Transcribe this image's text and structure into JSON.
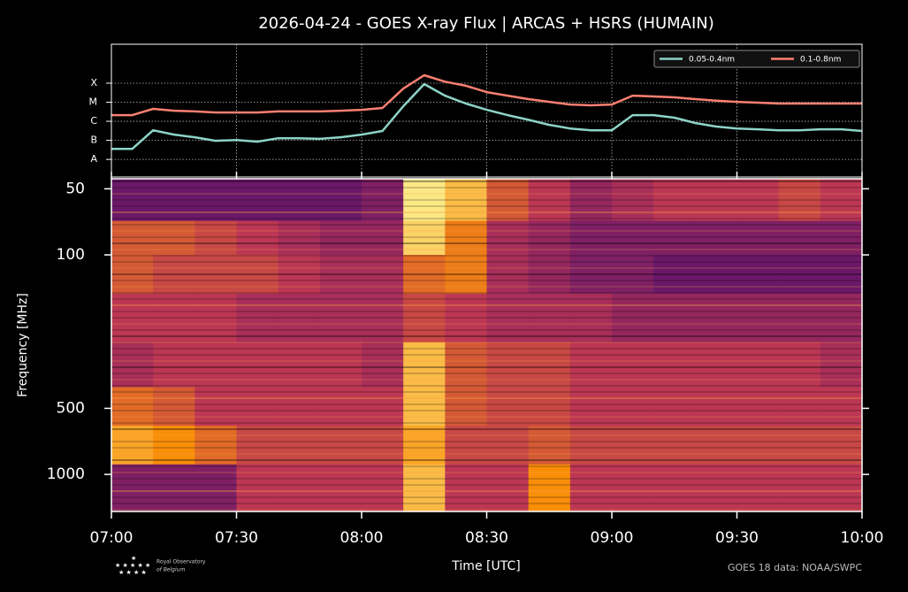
{
  "chart_data": [
    {
      "type": "line",
      "title": "2026-04-24 - GOES X-ray Flux | ARCAS + HSRS (HUMAIN)",
      "log_scale": true,
      "legend": "upper right",
      "grid": true,
      "xlim": [
        "07:00",
        "10:00"
      ],
      "ylim": [
        1.2e-09,
        0.011
      ],
      "yticks": [
        {
          "value": 1e-08,
          "label": "A"
        },
        {
          "value": 1e-07,
          "label": "B"
        },
        {
          "value": 1e-06,
          "label": "C"
        },
        {
          "value": 1e-05,
          "label": "M"
        },
        {
          "value": 0.0001,
          "label": "X"
        }
      ],
      "x": [
        "07:00",
        "07:05",
        "07:10",
        "07:15",
        "07:20",
        "07:25",
        "07:30",
        "07:35",
        "07:40",
        "07:45",
        "07:50",
        "07:55",
        "08:00",
        "08:05",
        "08:10",
        "08:15",
        "08:20",
        "08:25",
        "08:30",
        "08:35",
        "08:40",
        "08:45",
        "08:50",
        "08:55",
        "09:00",
        "09:05",
        "09:10",
        "09:15",
        "09:20",
        "09:25",
        "09:30",
        "09:35",
        "09:40",
        "09:45",
        "09:50",
        "09:55",
        "10:00"
      ],
      "series": [
        {
          "name": "0.05-0.4nm",
          "color": "#8dd3c7",
          "values": [
            3.6e-08,
            3.6e-08,
            3.4e-07,
            2e-07,
            1.45e-07,
            9.5e-08,
            1.05e-07,
            8.5e-08,
            1.3e-07,
            1.3e-07,
            1.2e-07,
            1.45e-07,
            2e-07,
            3.1e-07,
            6.2e-06,
            9e-05,
            2.2e-05,
            8.5e-06,
            4e-06,
            2.1e-06,
            1.2e-06,
            6.5e-07,
            4.2e-07,
            3.4e-07,
            3.4e-07,
            2.1e-06,
            2.1e-06,
            1.55e-06,
            8.1e-07,
            5.3e-07,
            4.2e-07,
            3.8e-07,
            3.4e-07,
            3.4e-07,
            3.8e-07,
            3.8e-07,
            3.1e-07
          ]
        },
        {
          "name": "0.1-0.8nm",
          "color": "#fa8072",
          "values": [
            2.1e-06,
            2.1e-06,
            4.5e-06,
            3.6e-06,
            3.3e-06,
            2.9e-06,
            2.9e-06,
            2.9e-06,
            3.3e-06,
            3.3e-06,
            3.3e-06,
            3.6e-06,
            4e-06,
            5e-06,
            5.2e-05,
            0.00026,
            0.00012,
            7.3e-05,
            3.4e-05,
            2.2e-05,
            1.45e-05,
            1.05e-05,
            7.6e-06,
            6.9e-06,
            7.6e-06,
            2.2e-05,
            2e-05,
            1.8e-05,
            1.45e-05,
            1.2e-05,
            1.05e-05,
            9.5e-06,
            8.5e-06,
            8.5e-06,
            8.5e-06,
            8.5e-06,
            8.5e-06
          ]
        }
      ]
    },
    {
      "type": "heatmap",
      "x_label": "Time [UTC]",
      "y_label": "Frequency [MHz]",
      "log_scale": true,
      "y_inverted": true,
      "colormap": "inferno",
      "xlim": [
        "07:00",
        "10:00"
      ],
      "xticks": [
        "07:00",
        "07:30",
        "08:00",
        "08:30",
        "09:00",
        "09:30",
        "10:00"
      ],
      "ylim": [
        45,
        1475
      ],
      "yticks": [
        50,
        100,
        500,
        1000
      ],
      "x_edges": [
        "07:00",
        "07:10",
        "07:20",
        "07:30",
        "07:40",
        "07:50",
        "08:00",
        "08:10",
        "08:20",
        "08:30",
        "08:40",
        "08:50",
        "09:00",
        "09:10",
        "09:20",
        "09:30",
        "09:40",
        "09:50",
        "10:00"
      ],
      "y_edges": [
        45,
        70,
        100,
        150,
        250,
        400,
        600,
        900,
        1475
      ],
      "z": [
        [
          0.3,
          0.3,
          0.3,
          0.3,
          0.3,
          0.3,
          0.35,
          0.95,
          0.85,
          0.6,
          0.5,
          0.4,
          0.45,
          0.5,
          0.5,
          0.5,
          0.55,
          0.5
        ],
        [
          0.6,
          0.6,
          0.55,
          0.5,
          0.45,
          0.4,
          0.4,
          0.9,
          0.7,
          0.45,
          0.4,
          0.35,
          0.35,
          0.35,
          0.35,
          0.35,
          0.35,
          0.35
        ],
        [
          0.6,
          0.55,
          0.55,
          0.55,
          0.5,
          0.45,
          0.45,
          0.65,
          0.7,
          0.45,
          0.4,
          0.35,
          0.35,
          0.3,
          0.3,
          0.3,
          0.3,
          0.3
        ],
        [
          0.5,
          0.5,
          0.5,
          0.45,
          0.45,
          0.45,
          0.45,
          0.55,
          0.5,
          0.45,
          0.45,
          0.45,
          0.4,
          0.4,
          0.4,
          0.4,
          0.4,
          0.4
        ],
        [
          0.45,
          0.5,
          0.5,
          0.5,
          0.5,
          0.5,
          0.45,
          0.85,
          0.6,
          0.55,
          0.55,
          0.5,
          0.5,
          0.5,
          0.5,
          0.5,
          0.5,
          0.45
        ],
        [
          0.65,
          0.6,
          0.5,
          0.5,
          0.5,
          0.5,
          0.5,
          0.85,
          0.6,
          0.55,
          0.55,
          0.5,
          0.5,
          0.5,
          0.5,
          0.5,
          0.5,
          0.5
        ],
        [
          0.8,
          0.75,
          0.65,
          0.55,
          0.55,
          0.55,
          0.55,
          0.8,
          0.55,
          0.55,
          0.6,
          0.55,
          0.55,
          0.55,
          0.55,
          0.55,
          0.55,
          0.55
        ],
        [
          0.35,
          0.35,
          0.35,
          0.5,
          0.5,
          0.5,
          0.5,
          0.85,
          0.5,
          0.5,
          0.75,
          0.5,
          0.5,
          0.5,
          0.5,
          0.5,
          0.5,
          0.5
        ]
      ],
      "source": "GOES 18 data: NOAA/SWPC",
      "credit": [
        "Royal Observatory",
        "of Belgium"
      ]
    }
  ]
}
